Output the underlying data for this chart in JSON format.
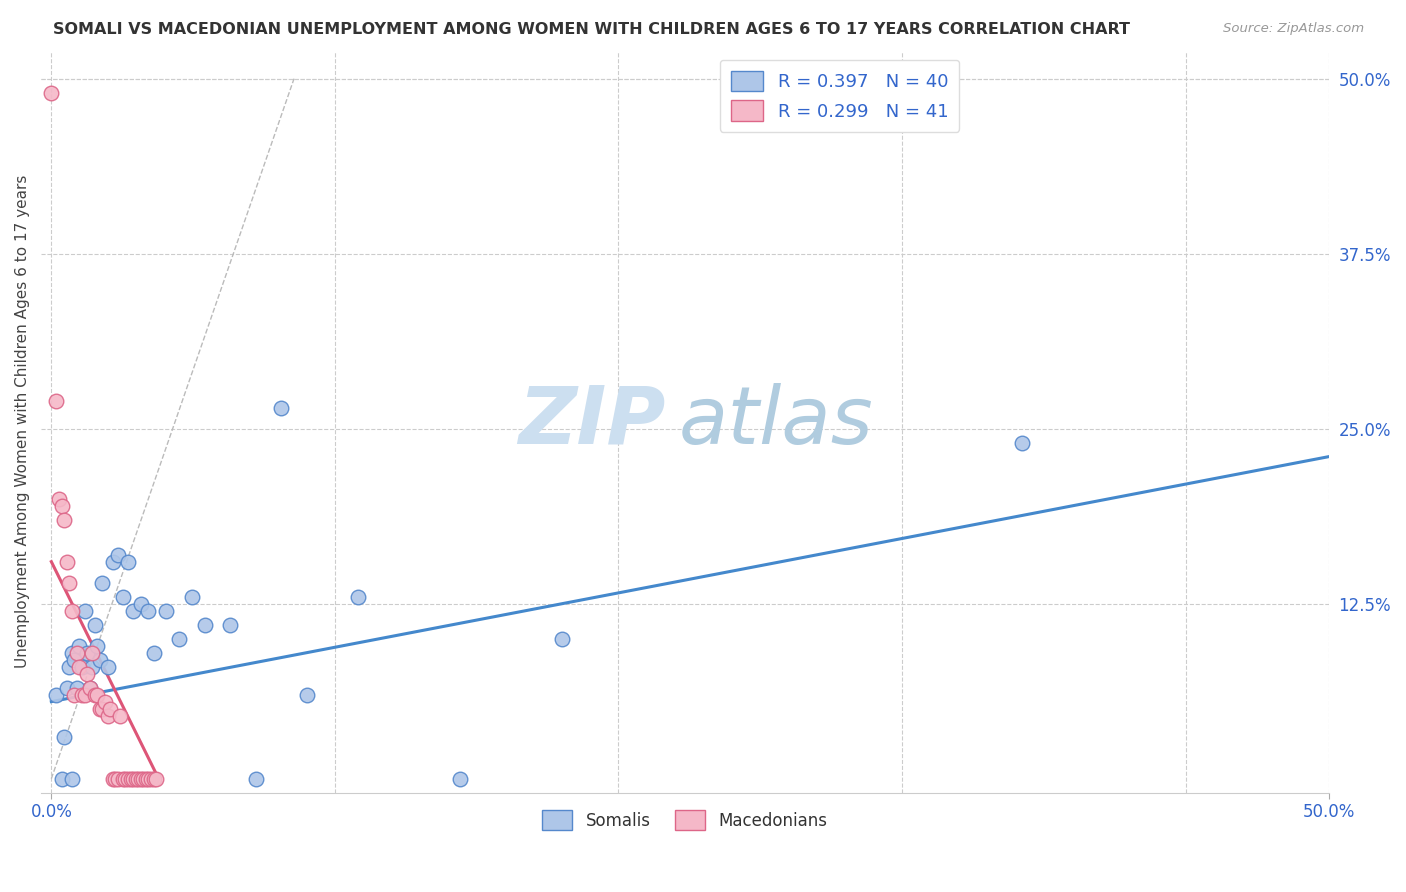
{
  "title": "SOMALI VS MACEDONIAN UNEMPLOYMENT AMONG WOMEN WITH CHILDREN AGES 6 TO 17 YEARS CORRELATION CHART",
  "source": "Source: ZipAtlas.com",
  "ylabel": "Unemployment Among Women with Children Ages 6 to 17 years",
  "xlim": [
    0.0,
    0.5
  ],
  "ylim": [
    0.0,
    0.52
  ],
  "right_ytick_labels": [
    "50.0%",
    "37.5%",
    "25.0%",
    "12.5%"
  ],
  "right_ytick_values": [
    0.5,
    0.375,
    0.25,
    0.125
  ],
  "somali_color": "#aec6e8",
  "macedonian_color": "#f5b8c8",
  "somali_edge_color": "#5588cc",
  "macedonian_edge_color": "#dd6688",
  "trend_somali_color": "#4488cc",
  "trend_macedonian_color": "#dd5577",
  "ref_line_color": "#bbbbbb",
  "background_color": "#ffffff",
  "grid_color": "#cccccc",
  "somali_x": [
    0.002,
    0.004,
    0.005,
    0.006,
    0.007,
    0.008,
    0.008,
    0.009,
    0.01,
    0.011,
    0.012,
    0.013,
    0.014,
    0.015,
    0.016,
    0.017,
    0.018,
    0.019,
    0.02,
    0.022,
    0.024,
    0.026,
    0.028,
    0.03,
    0.032,
    0.035,
    0.038,
    0.04,
    0.045,
    0.05,
    0.055,
    0.06,
    0.07,
    0.08,
    0.09,
    0.1,
    0.12,
    0.16,
    0.2,
    0.38
  ],
  "somali_y": [
    0.06,
    0.0,
    0.03,
    0.065,
    0.08,
    0.0,
    0.09,
    0.085,
    0.065,
    0.095,
    0.08,
    0.12,
    0.09,
    0.065,
    0.08,
    0.11,
    0.095,
    0.085,
    0.14,
    0.08,
    0.155,
    0.16,
    0.13,
    0.155,
    0.12,
    0.125,
    0.12,
    0.09,
    0.12,
    0.1,
    0.13,
    0.11,
    0.11,
    0.0,
    0.265,
    0.06,
    0.13,
    0.0,
    0.1,
    0.24
  ],
  "macedonian_x": [
    0.0,
    0.002,
    0.003,
    0.004,
    0.005,
    0.006,
    0.007,
    0.008,
    0.009,
    0.01,
    0.011,
    0.012,
    0.013,
    0.014,
    0.015,
    0.016,
    0.017,
    0.018,
    0.019,
    0.02,
    0.021,
    0.022,
    0.023,
    0.024,
    0.025,
    0.026,
    0.027,
    0.028,
    0.029,
    0.03,
    0.031,
    0.032,
    0.033,
    0.034,
    0.035,
    0.036,
    0.037,
    0.038,
    0.039,
    0.04,
    0.041
  ],
  "macedonian_y": [
    0.49,
    0.27,
    0.2,
    0.195,
    0.185,
    0.155,
    0.14,
    0.12,
    0.06,
    0.09,
    0.08,
    0.06,
    0.06,
    0.075,
    0.065,
    0.09,
    0.06,
    0.06,
    0.05,
    0.05,
    0.055,
    0.045,
    0.05,
    0.0,
    0.0,
    0.0,
    0.045,
    0.0,
    0.0,
    0.0,
    0.0,
    0.0,
    0.0,
    0.0,
    0.0,
    0.0,
    0.0,
    0.0,
    0.0,
    0.0,
    0.0
  ],
  "somali_trend_x": [
    0.0,
    0.5
  ],
  "somali_trend_y": [
    0.055,
    0.23
  ],
  "macedonian_trend_x": [
    0.0,
    0.042
  ],
  "macedonian_trend_y": [
    0.155,
    0.0
  ],
  "ref_line_x": [
    0.0,
    0.095
  ],
  "ref_line_y": [
    0.0,
    0.5
  ]
}
